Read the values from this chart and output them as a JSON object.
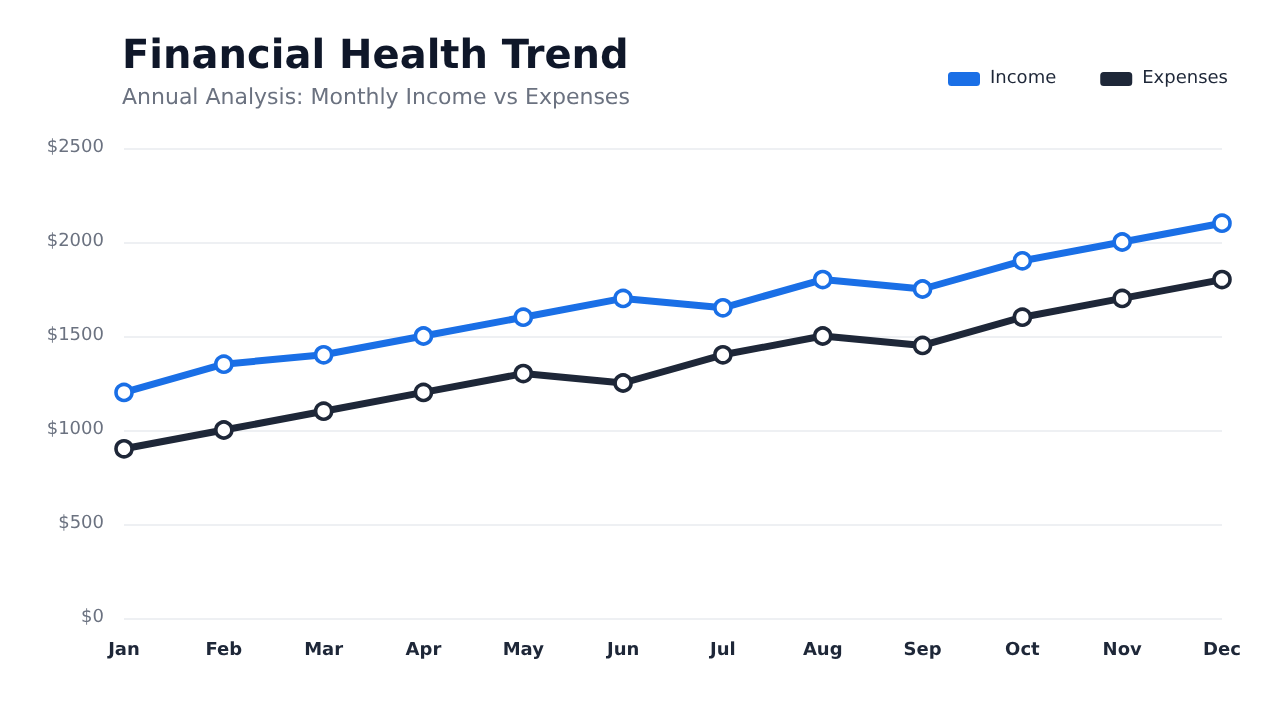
{
  "chart_data": {
    "type": "line",
    "title": "Financial Health Trend",
    "subtitle": "Annual Analysis: Monthly Income vs Expenses",
    "categories": [
      "Jan",
      "Feb",
      "Mar",
      "Apr",
      "May",
      "Jun",
      "Jul",
      "Aug",
      "Sep",
      "Oct",
      "Nov",
      "Dec"
    ],
    "series": [
      {
        "name": "Income",
        "color": "#1a6fe6",
        "values": [
          1200,
          1350,
          1400,
          1500,
          1600,
          1700,
          1650,
          1800,
          1750,
          1900,
          2000,
          2100
        ]
      },
      {
        "name": "Expenses",
        "color": "#1e2738",
        "values": [
          900,
          1000,
          1100,
          1200,
          1300,
          1250,
          1400,
          1500,
          1450,
          1600,
          1700,
          1800
        ]
      }
    ],
    "ylim": [
      0,
      2500
    ],
    "yticks": [
      {
        "value": 0,
        "label": "$0"
      },
      {
        "value": 500,
        "label": "$500"
      },
      {
        "value": 1000,
        "label": "$1000"
      },
      {
        "value": 1500,
        "label": "$1500"
      },
      {
        "value": 2000,
        "label": "$2000"
      },
      {
        "value": 2500,
        "label": "$2500"
      }
    ],
    "grid": "y",
    "legend": "top right",
    "marker": "circle",
    "line_style": "solid"
  }
}
